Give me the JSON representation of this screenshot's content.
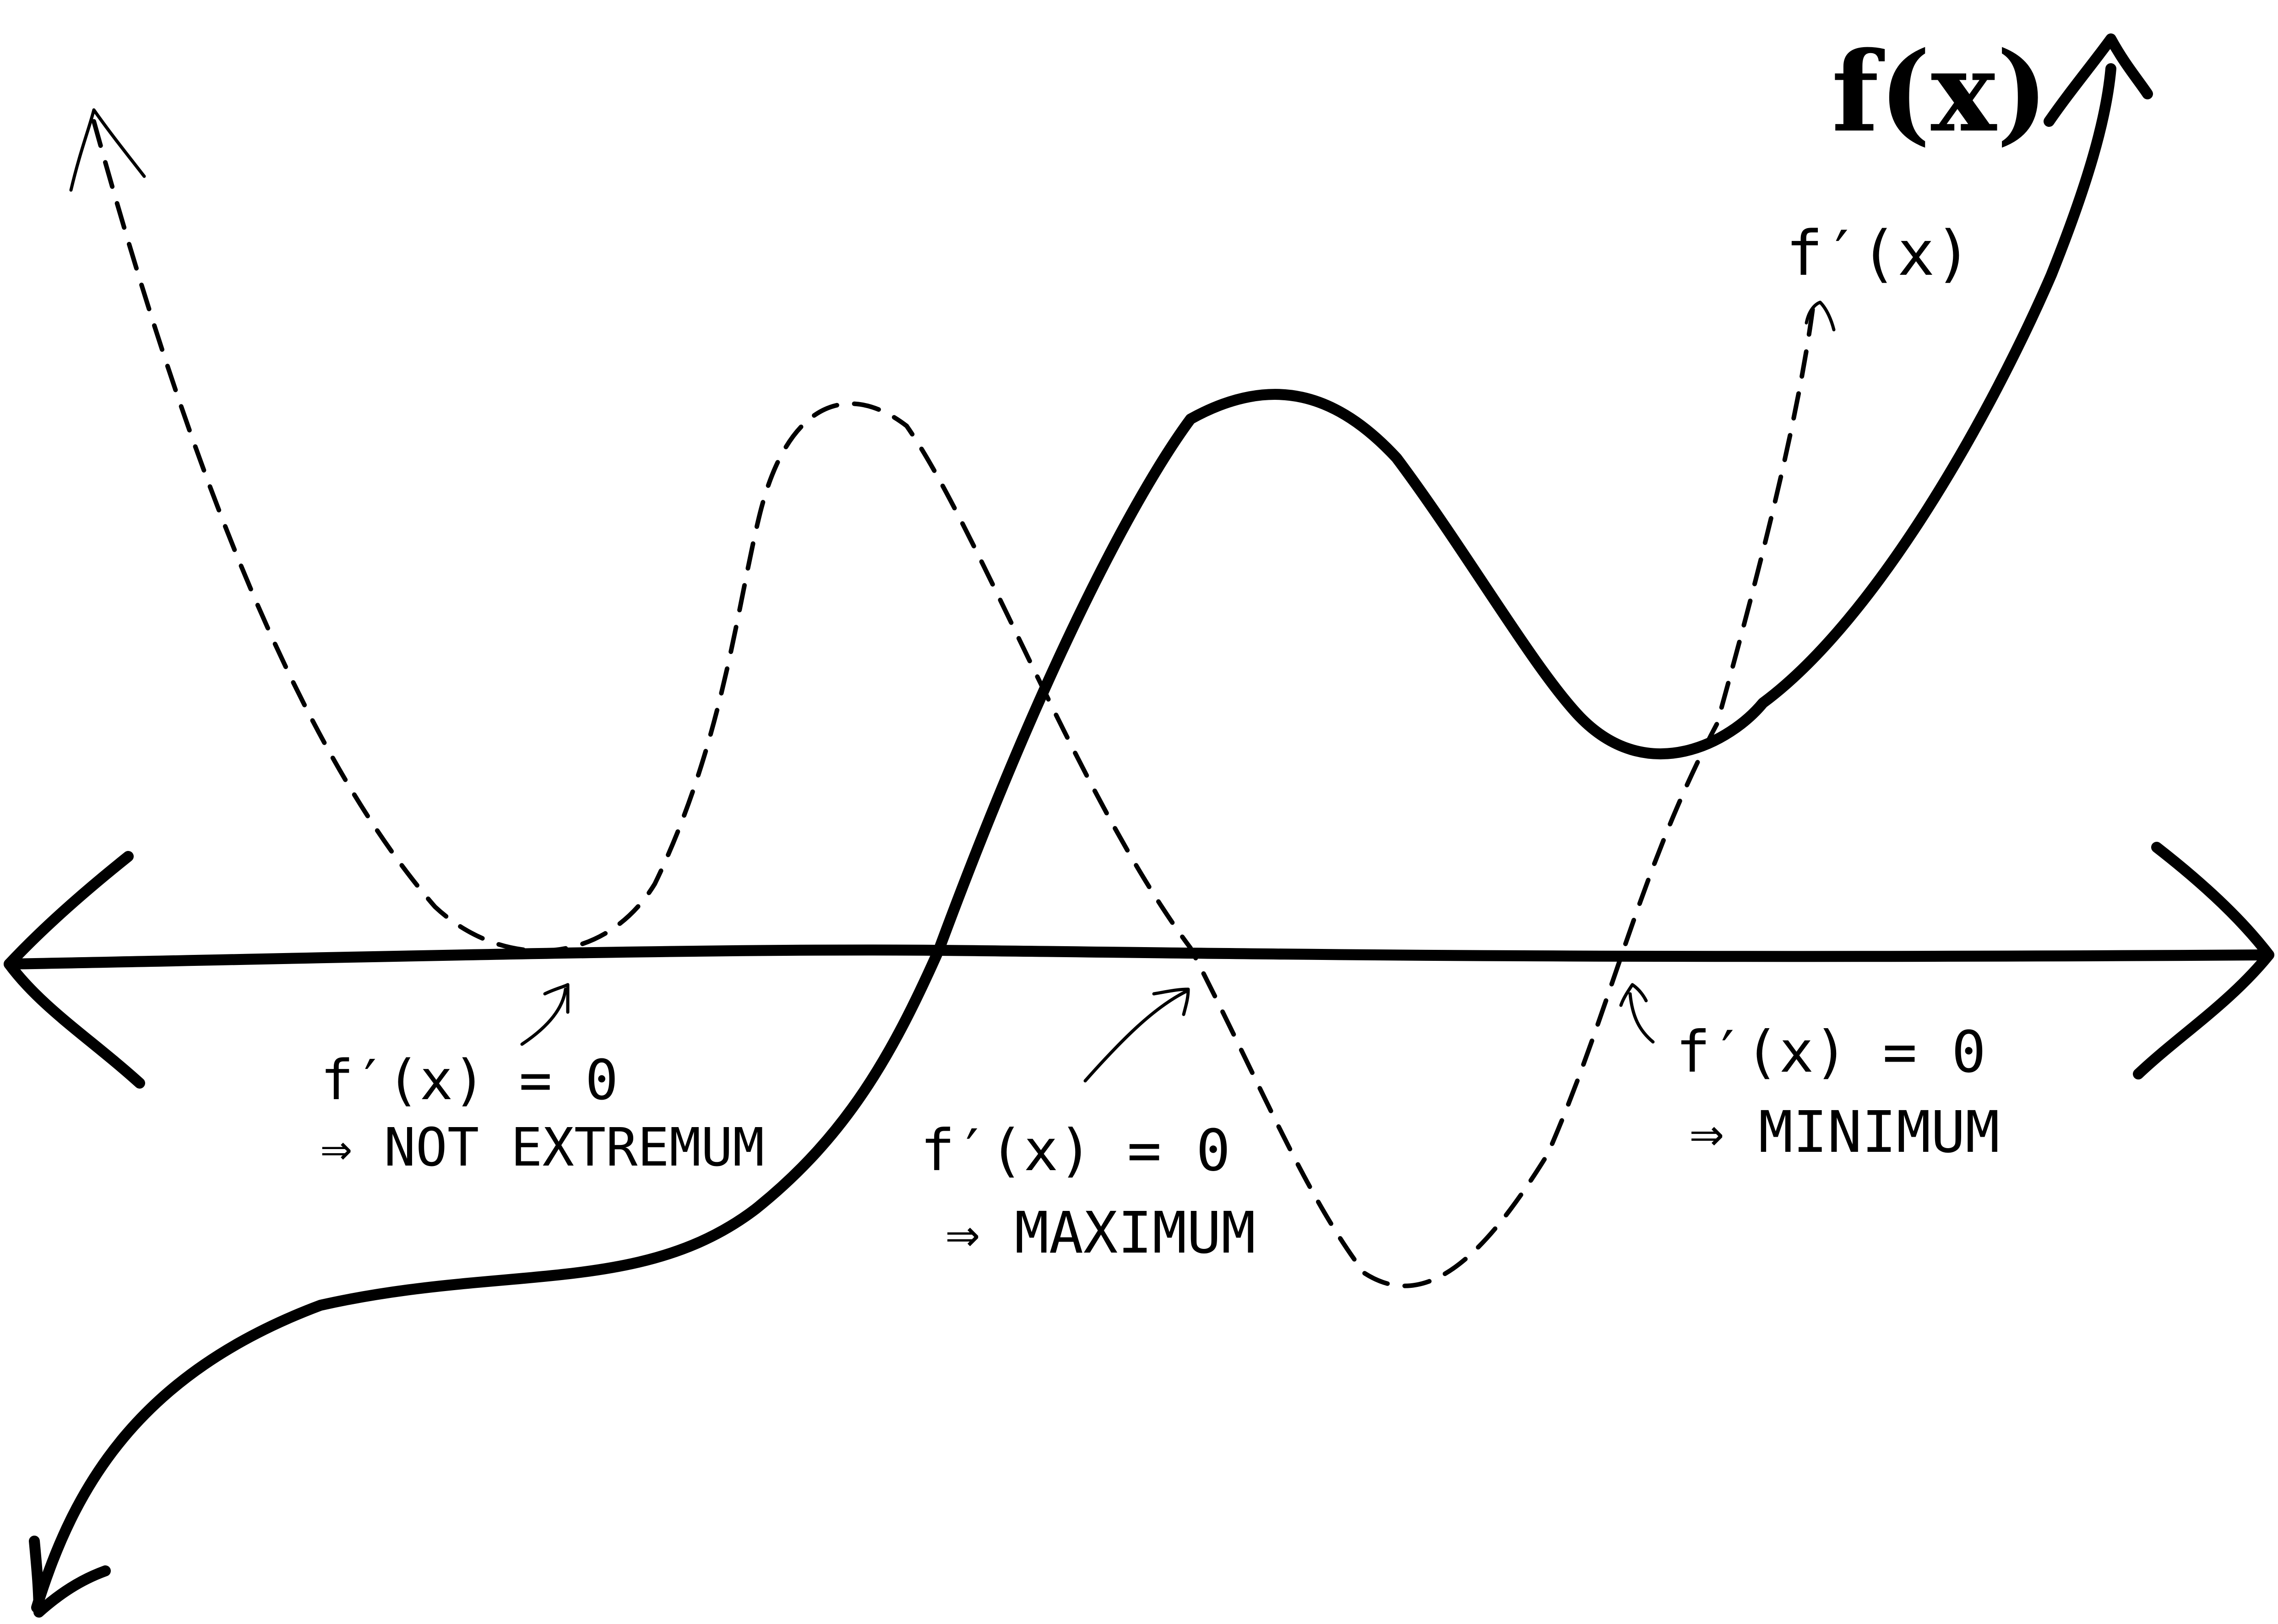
{
  "labels": {
    "f_x": "f(x)",
    "f_prime_x": "f′(x)",
    "ann1_line1": "f′(x) = 0",
    "ann1_line2": "⇒ NOT EXTREMUM",
    "ann2_line1": "f′(x) = 0",
    "ann2_line2": "⇒ MAXIMUM",
    "ann3_line1": "f′(x) = 0",
    "ann3_line2": "⇒ MINIMUM"
  },
  "colors": {
    "ink": "#000000",
    "background": "#ffffff"
  }
}
